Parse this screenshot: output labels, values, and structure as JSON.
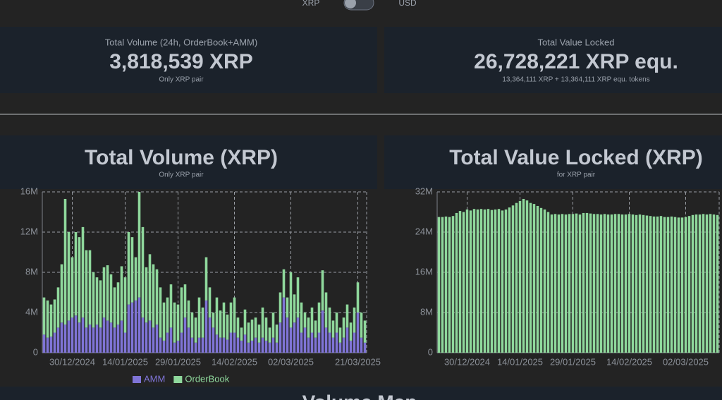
{
  "header": {
    "left_option": "XRP",
    "right_option": "USD"
  },
  "stats": [
    {
      "label": "Total Volume (24h, OrderBook+AMM)",
      "value": "3,818,539 XRP",
      "note": "Only XRP pair"
    },
    {
      "label": "Total Value Locked",
      "value": "26,728,221 XRP equ.",
      "note": "13,364,111 XRP + 13,364,111 XRP equ. tokens"
    }
  ],
  "chart_data": [
    {
      "type": "stacked_bar",
      "title": "Total Volume (XRP)",
      "subtitle": "Only XRP pair",
      "categories": [
        null,
        null,
        null,
        null,
        null,
        null,
        null,
        null,
        "30/12/2024",
        null,
        null,
        null,
        null,
        null,
        null,
        null,
        null,
        null,
        null,
        null,
        null,
        null,
        null,
        "14/01/2025",
        null,
        null,
        null,
        null,
        null,
        null,
        null,
        null,
        null,
        null,
        null,
        null,
        null,
        null,
        "29/01/2025",
        null,
        null,
        null,
        null,
        null,
        null,
        null,
        null,
        null,
        null,
        null,
        null,
        null,
        null,
        null,
        "14/02/2025",
        null,
        null,
        null,
        null,
        null,
        null,
        null,
        null,
        null,
        null,
        null,
        null,
        null,
        null,
        null,
        "02/03/2025",
        null,
        null,
        null,
        null,
        null,
        null,
        null,
        null,
        null,
        null,
        null,
        null,
        null,
        null,
        null,
        null,
        null,
        null,
        "21/03/2025",
        null,
        null
      ],
      "series": [
        {
          "name": "AMM",
          "color": "#7f74d6",
          "values": [
            1800000,
            1500000,
            1600000,
            2000000,
            2500000,
            3000000,
            2800000,
            3200000,
            3500000,
            3700000,
            3000000,
            3500000,
            2500000,
            2800000,
            2500000,
            2800000,
            2500000,
            3500000,
            3200000,
            3000000,
            2500000,
            2800000,
            3200000,
            2000000,
            4800000,
            5000000,
            5200000,
            5500000,
            3500000,
            3000000,
            3200000,
            2500000,
            2800000,
            1500000,
            1200000,
            2000000,
            2500000,
            1000000,
            1200000,
            2000000,
            3500000,
            2500000,
            1500000,
            1000000,
            1500000,
            1500000,
            5200000,
            3500000,
            2500000,
            1800000,
            1500000,
            1500000,
            1300000,
            2000000,
            2000000,
            1500000,
            1200000,
            1800000,
            1000000,
            1200000,
            1500000,
            1000000,
            1500000,
            1200000,
            1000000,
            1500000,
            1000000,
            3000000,
            5500000,
            3500000,
            2500000,
            3000000,
            3500000,
            2000000,
            2500000,
            1500000,
            2000000,
            1500000,
            2000000,
            4200000,
            2500000,
            2000000,
            1500000,
            2000000,
            1000000,
            1500000,
            2500000,
            1200000,
            2000000,
            4000000,
            1500000,
            1000000
          ]
        },
        {
          "name": "OrderBook",
          "color": "#8fd89c",
          "values": [
            3700000,
            3700000,
            3200000,
            3300000,
            4000000,
            5800000,
            12500000,
            8800000,
            6000000,
            8300000,
            8500000,
            9000000,
            7700000,
            7400000,
            5500000,
            4700000,
            4700000,
            5000000,
            5500000,
            4800000,
            4000000,
            4200000,
            5400000,
            5500000,
            7200000,
            6500000,
            4300000,
            10500000,
            9000000,
            5500000,
            6600000,
            6300000,
            5500000,
            5000000,
            3800000,
            3500000,
            4300000,
            4000000,
            3600000,
            4500000,
            3300000,
            2700000,
            2500000,
            2500000,
            4000000,
            3000000,
            4300000,
            3000000,
            1500000,
            3700000,
            2700000,
            3500000,
            2500000,
            3000000,
            3500000,
            2000000,
            1300000,
            2500000,
            2000000,
            2100000,
            2000000,
            1800000,
            3000000,
            2300000,
            1500000,
            2500000,
            1800000,
            3000000,
            2800000,
            2000000,
            5500000,
            2800000,
            4000000,
            3000000,
            1500000,
            2000000,
            2500000,
            1700000,
            3000000,
            4000000,
            3500000,
            2500000,
            1700000,
            2000000,
            1500000,
            2000000,
            2300000,
            1800000,
            2500000,
            3000000,
            2500000,
            2200000
          ]
        }
      ],
      "ylim": [
        0,
        16000000
      ],
      "yticks": [
        0,
        {
          "value": 4000000,
          "label": "4M"
        },
        {
          "value": 8000000,
          "label": "8M"
        },
        {
          "value": 12000000,
          "label": "12M"
        },
        {
          "value": 16000000,
          "label": "16M"
        }
      ],
      "grid": true,
      "legend": "bottom"
    },
    {
      "type": "bar",
      "title": "Total Value Locked (XRP)",
      "subtitle": "for XRP pair",
      "categories": [
        null,
        null,
        null,
        null,
        null,
        null,
        null,
        null,
        "30/12/2024",
        null,
        null,
        null,
        null,
        null,
        null,
        null,
        null,
        null,
        null,
        null,
        null,
        null,
        null,
        "14/01/2025",
        null,
        null,
        null,
        null,
        null,
        null,
        null,
        null,
        null,
        null,
        null,
        null,
        null,
        null,
        "29/01/2025",
        null,
        null,
        null,
        null,
        null,
        null,
        null,
        null,
        null,
        null,
        null,
        null,
        null,
        null,
        null,
        "14/02/2025",
        null,
        null,
        null,
        null,
        null,
        null,
        null,
        null,
        null,
        null,
        null,
        null,
        null,
        null,
        null,
        "02/03/2025",
        null,
        null,
        null,
        null,
        null,
        null,
        null,
        null,
        null
      ],
      "values": [
        27000000,
        27000000,
        27100000,
        27000000,
        27200000,
        27800000,
        28200000,
        28000000,
        28500000,
        28300000,
        28600000,
        28500000,
        28600000,
        28500000,
        28600000,
        28400000,
        28500000,
        28600000,
        28300000,
        28500000,
        28900000,
        29300000,
        29800000,
        30200000,
        30600000,
        30300000,
        29800000,
        29600000,
        29200000,
        28800000,
        28500000,
        28000000,
        27500000,
        27600000,
        27500000,
        27600000,
        27500000,
        27600000,
        27600000,
        27700000,
        27500000,
        27800000,
        27800000,
        27700000,
        27600000,
        27600000,
        27500000,
        27600000,
        27500000,
        27500000,
        27600000,
        27600000,
        27500000,
        27500000,
        27600000,
        27500000,
        27400000,
        27500000,
        27400000,
        27300000,
        27200000,
        27100000,
        27100000,
        27200000,
        27000000,
        27000000,
        27100000,
        27000000,
        26900000,
        26900000,
        27000000,
        27200000,
        27400000,
        27500000,
        27500000,
        27600000,
        27500000,
        27600000,
        27500000,
        27400000
      ],
      "color": "#8fd89c",
      "ylim": [
        0,
        32000000
      ],
      "yticks": [
        0,
        {
          "value": 8000000,
          "label": "8M"
        },
        {
          "value": 16000000,
          "label": "16M"
        },
        {
          "value": 24000000,
          "label": "24M"
        },
        {
          "value": 32000000,
          "label": "32M"
        }
      ],
      "grid": true
    }
  ],
  "next_section": {
    "title": "Volume Map"
  }
}
